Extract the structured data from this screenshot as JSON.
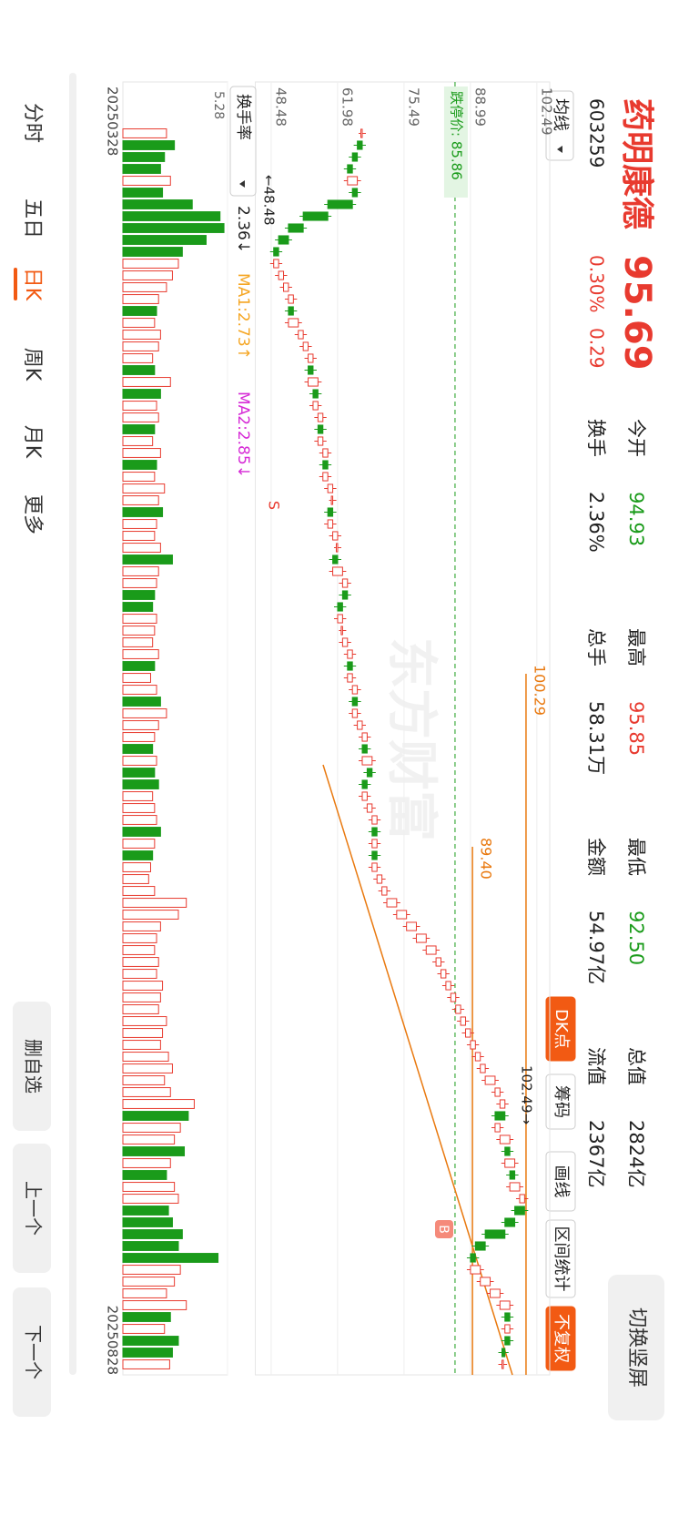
{
  "header": {
    "name": "药明康德",
    "code": "603259",
    "price": "95.69",
    "change_pct": "0.30%",
    "change": "0.29",
    "rotate_button": "切换竖屏"
  },
  "stats": [
    {
      "label": "今开",
      "value": "94.93",
      "color": "#1a9b1a"
    },
    {
      "label": "最高",
      "value": "95.85",
      "color": "#e83a2f"
    },
    {
      "label": "最低",
      "value": "92.50",
      "color": "#1a9b1a"
    },
    {
      "label": "总值",
      "value": "2824亿",
      "color": "#222222"
    },
    {
      "label": "换手",
      "value": "2.36%",
      "color": "#222222"
    },
    {
      "label": "总手",
      "value": "58.31万",
      "color": "#222222"
    },
    {
      "label": "金额",
      "value": "54.97亿",
      "color": "#222222"
    },
    {
      "label": "流值",
      "value": "2367亿",
      "color": "#222222"
    }
  ],
  "toolbar": {
    "ma": "均线",
    "buttons": [
      "DK点",
      "筹码",
      "画线",
      "区间统计",
      "不复权"
    ]
  },
  "chart_data": {
    "type": "candlestick",
    "closes": [
      67,
      66,
      65,
      64,
      66,
      65,
      60,
      55,
      52,
      50,
      49,
      50,
      51,
      52,
      53,
      52,
      54,
      55,
      56,
      57,
      56,
      58,
      57,
      58,
      59,
      58,
      59,
      60,
      59,
      60,
      61,
      61,
      60,
      61,
      62,
      62,
      61,
      63,
      64,
      63,
      62,
      63,
      63,
      64,
      65,
      64,
      65,
      66,
      65,
      66,
      67,
      68,
      67,
      69,
      68,
      67,
      68,
      69,
      70,
      69,
      70,
      69,
      70,
      71,
      72,
      74,
      76,
      78,
      80,
      82,
      83,
      84,
      85,
      86,
      87,
      88,
      89,
      90,
      91,
      92,
      94,
      95,
      96,
      94,
      95,
      97,
      96,
      98,
      97,
      99,
      100,
      98,
      96,
      92,
      90,
      89,
      91,
      93,
      95,
      97,
      96,
      97,
      96,
      95.4,
      95.69
    ],
    "up_color": "#e83a2f",
    "down_color": "#1a9b1a",
    "ylim": [
      46,
      104
    ],
    "yticks": [
      48.48,
      61.98,
      75.49,
      88.99,
      102.49
    ],
    "limit_down": 85.86,
    "limit_down_label": "跌停价: 85.86",
    "levels": [
      100.29,
      {
        "value": 89.4,
        "label": "89.40"
      }
    ],
    "high_label": "102.49→",
    "low_label": "←48.48",
    "buy": "B",
    "sell": "S",
    "watermark": "东方财富"
  },
  "volume": {
    "label": "换手率",
    "current": "2.36↓",
    "ma1": "MA1:2.73↑",
    "ma2": "MA2:2.85↓",
    "ylim": [
      0,
      5.28
    ],
    "yticks": [
      5.28
    ],
    "values": [
      2.2,
      2.6,
      2.1,
      1.9,
      2.4,
      2.0,
      3.5,
      4.9,
      5.1,
      4.2,
      3.0,
      2.8,
      2.5,
      2.2,
      1.8,
      1.7,
      1.6,
      1.9,
      1.8,
      1.5,
      1.6,
      2.4,
      1.9,
      1.7,
      1.8,
      1.6,
      1.5,
      1.9,
      1.7,
      1.6,
      2.1,
      1.8,
      2.0,
      1.7,
      1.6,
      1.9,
      2.5,
      1.8,
      1.7,
      1.6,
      1.5,
      1.7,
      1.6,
      1.5,
      1.8,
      1.6,
      1.4,
      1.7,
      1.9,
      2.2,
      1.8,
      1.6,
      1.5,
      1.7,
      1.6,
      1.8,
      1.5,
      1.6,
      1.7,
      1.9,
      1.6,
      1.5,
      1.4,
      1.3,
      1.6,
      3.2,
      2.8,
      1.9,
      1.7,
      1.6,
      1.8,
      1.7,
      2.0,
      1.9,
      1.8,
      2.2,
      2.0,
      1.9,
      2.3,
      2.5,
      2.1,
      2.4,
      3.6,
      3.3,
      2.9,
      2.6,
      3.1,
      2.4,
      2.2,
      2.6,
      2.8,
      2.3,
      2.5,
      3.0,
      2.8,
      4.8,
      2.9,
      2.6,
      2.2,
      3.2,
      2.4,
      2.1,
      2.8,
      2.5,
      2.36
    ]
  },
  "dates": [
    "20250328",
    "20250828"
  ],
  "tabs": [
    "分时",
    "五日",
    "日K",
    "周K",
    "月K",
    "更多"
  ],
  "actions": [
    "删自选",
    "上一个",
    "下一个"
  ]
}
